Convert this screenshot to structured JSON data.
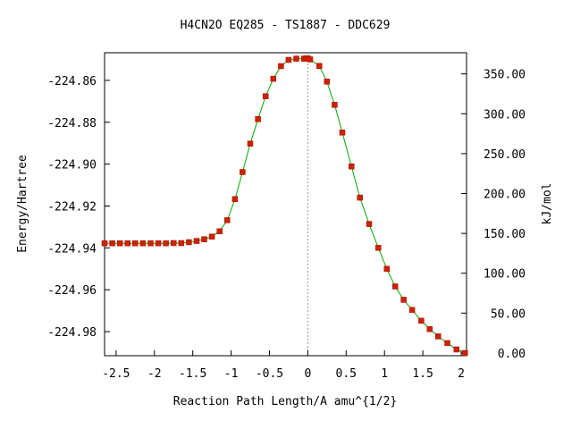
{
  "chart_data": {
    "type": "line",
    "title": "H4CN2O   EQ285 - TS1887 - DDC629",
    "xlabel": "Reaction Path Length/A amu^{1/2}",
    "ylabel": "Energy/Hartree",
    "y2label": "kJ/mol",
    "xlim": [
      -2.65,
      2.07
    ],
    "ylim": [
      -224.9915,
      -224.8468
    ],
    "x_ticks": [
      -2.5,
      -2,
      -1.5,
      -1,
      -0.5,
      0,
      0.5,
      1,
      1.5,
      2
    ],
    "x_tick_labels": [
      "-2.5",
      "-2",
      "-1.5",
      "-1",
      "-0.5",
      "0",
      "0.5",
      "1",
      "1.5",
      "2"
    ],
    "y_ticks": [
      -224.86,
      -224.88,
      -224.9,
      -224.92,
      -224.94,
      -224.96,
      -224.98
    ],
    "y_tick_labels": [
      "-224.86",
      "-224.88",
      "-224.90",
      "-224.92",
      "-224.94",
      "-224.96",
      "-224.98"
    ],
    "y2_ticks": [
      0,
      50,
      100,
      150,
      200,
      250,
      300,
      350
    ],
    "y2_tick_labels": [
      "0.00",
      "50.00",
      "100.00",
      "150.00",
      "200.00",
      "250.00",
      "300.00",
      "350.00"
    ],
    "y2_zero_energy": -224.9902,
    "y2_hartree_to_kjmol": 2625.5,
    "ts_marker_x": 0,
    "line_color": "#00aa00",
    "marker_color": "#cc2200",
    "series": [
      {
        "x": [
          -2.65,
          -2.55,
          -2.45,
          -2.35,
          -2.25,
          -2.15,
          -2.05,
          -1.95,
          -1.85,
          -1.75,
          -1.65,
          -1.55,
          -1.45,
          -1.35,
          -1.25,
          -1.15,
          -1.05,
          -0.95,
          -0.85,
          -0.75,
          -0.65,
          -0.55,
          -0.45,
          -0.35,
          -0.25,
          -0.15,
          -0.05,
          -0.02,
          0.0,
          0.03,
          0.15,
          0.25,
          0.35,
          0.45,
          0.57,
          0.68,
          0.8,
          0.92,
          1.03,
          1.14,
          1.25,
          1.36,
          1.48,
          1.59,
          1.7,
          1.82,
          1.94,
          2.05
        ],
        "y": [
          -224.9378,
          -224.9378,
          -224.9378,
          -224.9378,
          -224.9378,
          -224.9378,
          -224.9378,
          -224.9378,
          -224.9378,
          -224.9377,
          -224.9377,
          -224.9373,
          -224.9367,
          -224.9359,
          -224.9346,
          -224.9321,
          -224.9268,
          -224.9167,
          -224.9038,
          -224.8902,
          -224.8785,
          -224.8676,
          -224.8592,
          -224.8532,
          -224.8502,
          -224.8496,
          -224.8496,
          -224.8495,
          -224.8495,
          -224.85,
          -224.8531,
          -224.8606,
          -224.8717,
          -224.8849,
          -224.9011,
          -224.916,
          -224.9286,
          -224.94,
          -224.95,
          -224.9584,
          -224.9648,
          -224.9696,
          -224.9748,
          -224.9788,
          -224.9823,
          -224.9855,
          -224.9885,
          -224.9902
        ]
      }
    ]
  }
}
